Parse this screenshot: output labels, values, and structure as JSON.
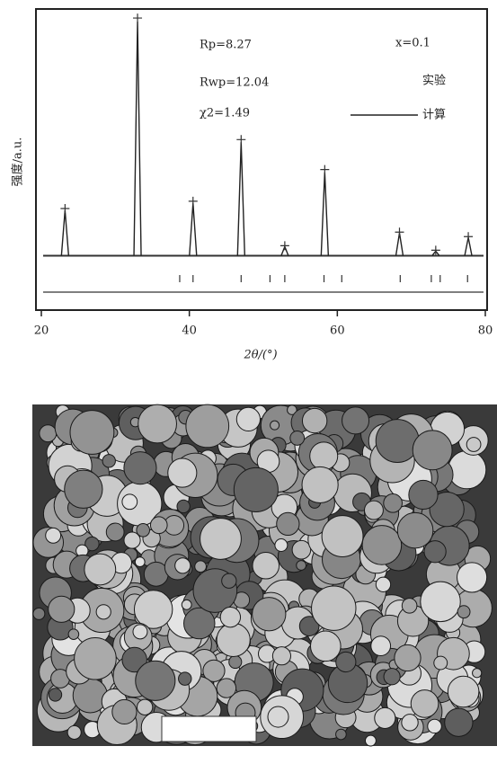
{
  "chart_data": {
    "type": "line",
    "xlabel": "2θ/(°)",
    "ylabel": "强度/a.u.",
    "annotations": [
      "Rp=8.27",
      "Rwp=12.04",
      "χ2=1.49"
    ],
    "sample_label": "x=0.1",
    "x": [
      23.2,
      33,
      40.5,
      47,
      52.9,
      58.3,
      68.4,
      73.3,
      77.7
    ],
    "series": [
      {
        "name": "实验",
        "color": "#333333",
        "values": [
          52,
          262,
          60,
          128,
          11,
          95,
          26,
          6,
          21
        ]
      },
      {
        "name": "计算",
        "color": "#222222",
        "values": [
          50,
          258,
          58,
          125,
          10,
          92,
          25,
          5,
          20
        ]
      }
    ],
    "bragg_positions": [
      38.7,
      40.5,
      47,
      50.9,
      52.9,
      58.2,
      60.6,
      68.5,
      72.7,
      73.9,
      77.6
    ],
    "xlim": [
      20,
      80
    ],
    "xticks": [
      20,
      40,
      60,
      80
    ],
    "ylim": [
      -60,
      270
    ]
  }
}
